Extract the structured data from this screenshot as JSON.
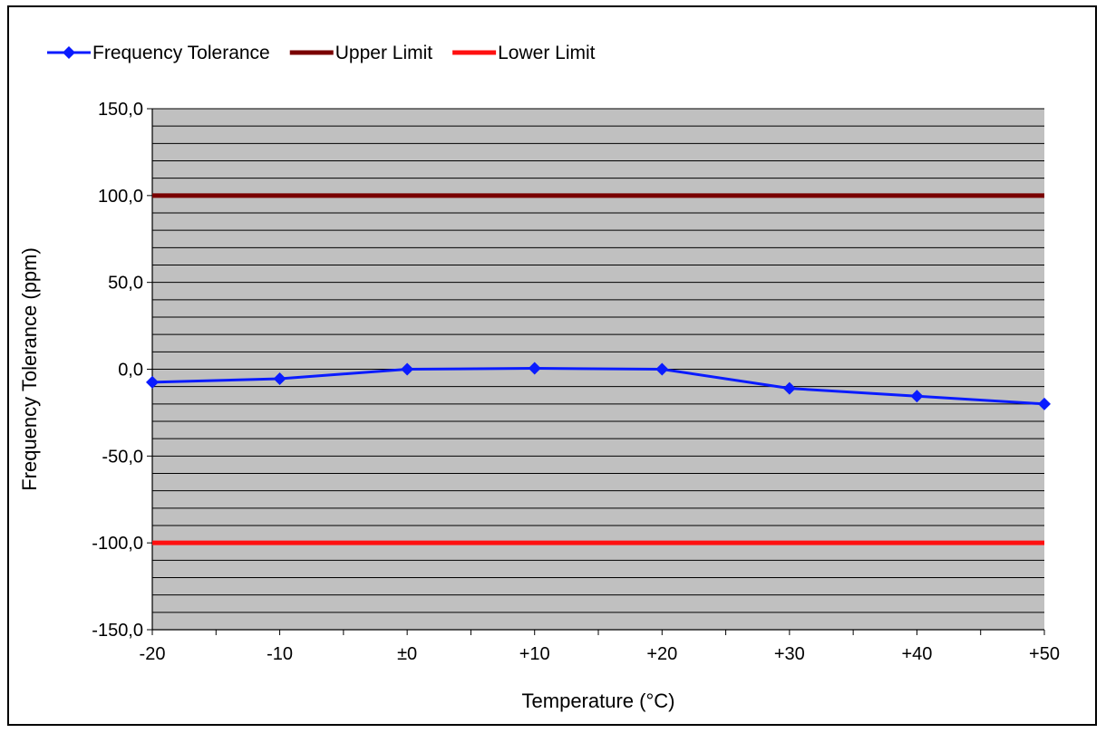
{
  "chart_data": {
    "type": "line",
    "title": "",
    "xlabel": "Temperature (°C)",
    "ylabel": "Frequency Tolerance (ppm)",
    "categories": [
      "-20",
      "-10",
      "±0",
      "+10",
      "+20",
      "+30",
      "+40",
      "+50"
    ],
    "x": [
      -20,
      -10,
      0,
      10,
      20,
      30,
      40,
      50
    ],
    "xlim": [
      -20,
      50
    ],
    "ylim": [
      -150,
      150
    ],
    "ytick_values": [
      150,
      100,
      50,
      0,
      -50,
      -100,
      -150
    ],
    "ytick_labels": [
      "150,0",
      "100,0",
      "50,0",
      "0,0",
      "-50,0",
      "-100,0",
      "-150,0"
    ],
    "y_minor_step": 10,
    "x_minor_step": 5,
    "grid": true,
    "legend_position": "top-left",
    "series": [
      {
        "name": "Frequency Tolerance",
        "values": [
          -7.5,
          -5.5,
          0.0,
          0.5,
          0.0,
          -11.0,
          -15.5,
          -20.0
        ],
        "color": "#0a1bff",
        "marker": "diamond"
      },
      {
        "name": "Upper Limit",
        "values": [
          100,
          100,
          100,
          100,
          100,
          100,
          100,
          100
        ],
        "color": "#7a0000",
        "marker": "none"
      },
      {
        "name": "Lower Limit",
        "values": [
          -100,
          -100,
          -100,
          -100,
          -100,
          -100,
          -100,
          -100
        ],
        "color": "#ff1010",
        "marker": "none"
      }
    ],
    "plot_background": "#c0c0c0"
  }
}
